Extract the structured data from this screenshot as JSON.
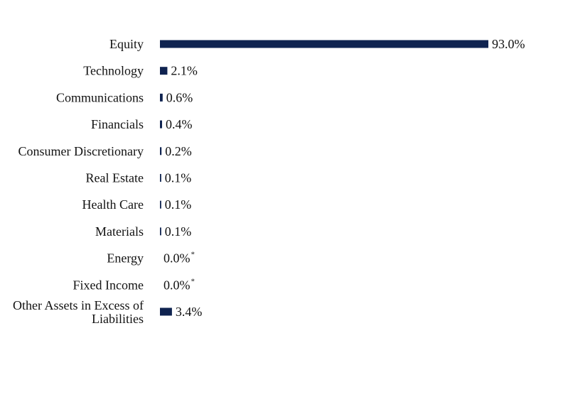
{
  "chart_data": {
    "type": "bar",
    "orientation": "horizontal",
    "categories": [
      "Equity",
      "Technology",
      "Communications",
      "Financials",
      "Consumer Discretionary",
      "Real Estate",
      "Health Care",
      "Materials",
      "Energy",
      "Fixed Income",
      "Other Assets in Excess of Liabilities"
    ],
    "values": [
      93.0,
      2.1,
      0.6,
      0.4,
      0.2,
      0.1,
      0.1,
      0.1,
      0.0,
      0.0,
      3.4
    ],
    "value_labels": [
      "93.0%",
      "2.1%",
      "0.6%",
      "0.4%",
      "0.2%",
      "0.1%",
      "0.1%",
      "0.1%",
      "0.0%",
      "0.0%",
      "3.4%"
    ],
    "footnote_marks": [
      "",
      "",
      "",
      "",
      "",
      "",
      "",
      "",
      "*",
      "*",
      ""
    ],
    "xlim": [
      0,
      93.0
    ],
    "grid": false,
    "legend": "none",
    "title": "",
    "xlabel": "",
    "ylabel": "",
    "colors": {
      "bar": "#0f2350",
      "text": "#111111"
    }
  }
}
